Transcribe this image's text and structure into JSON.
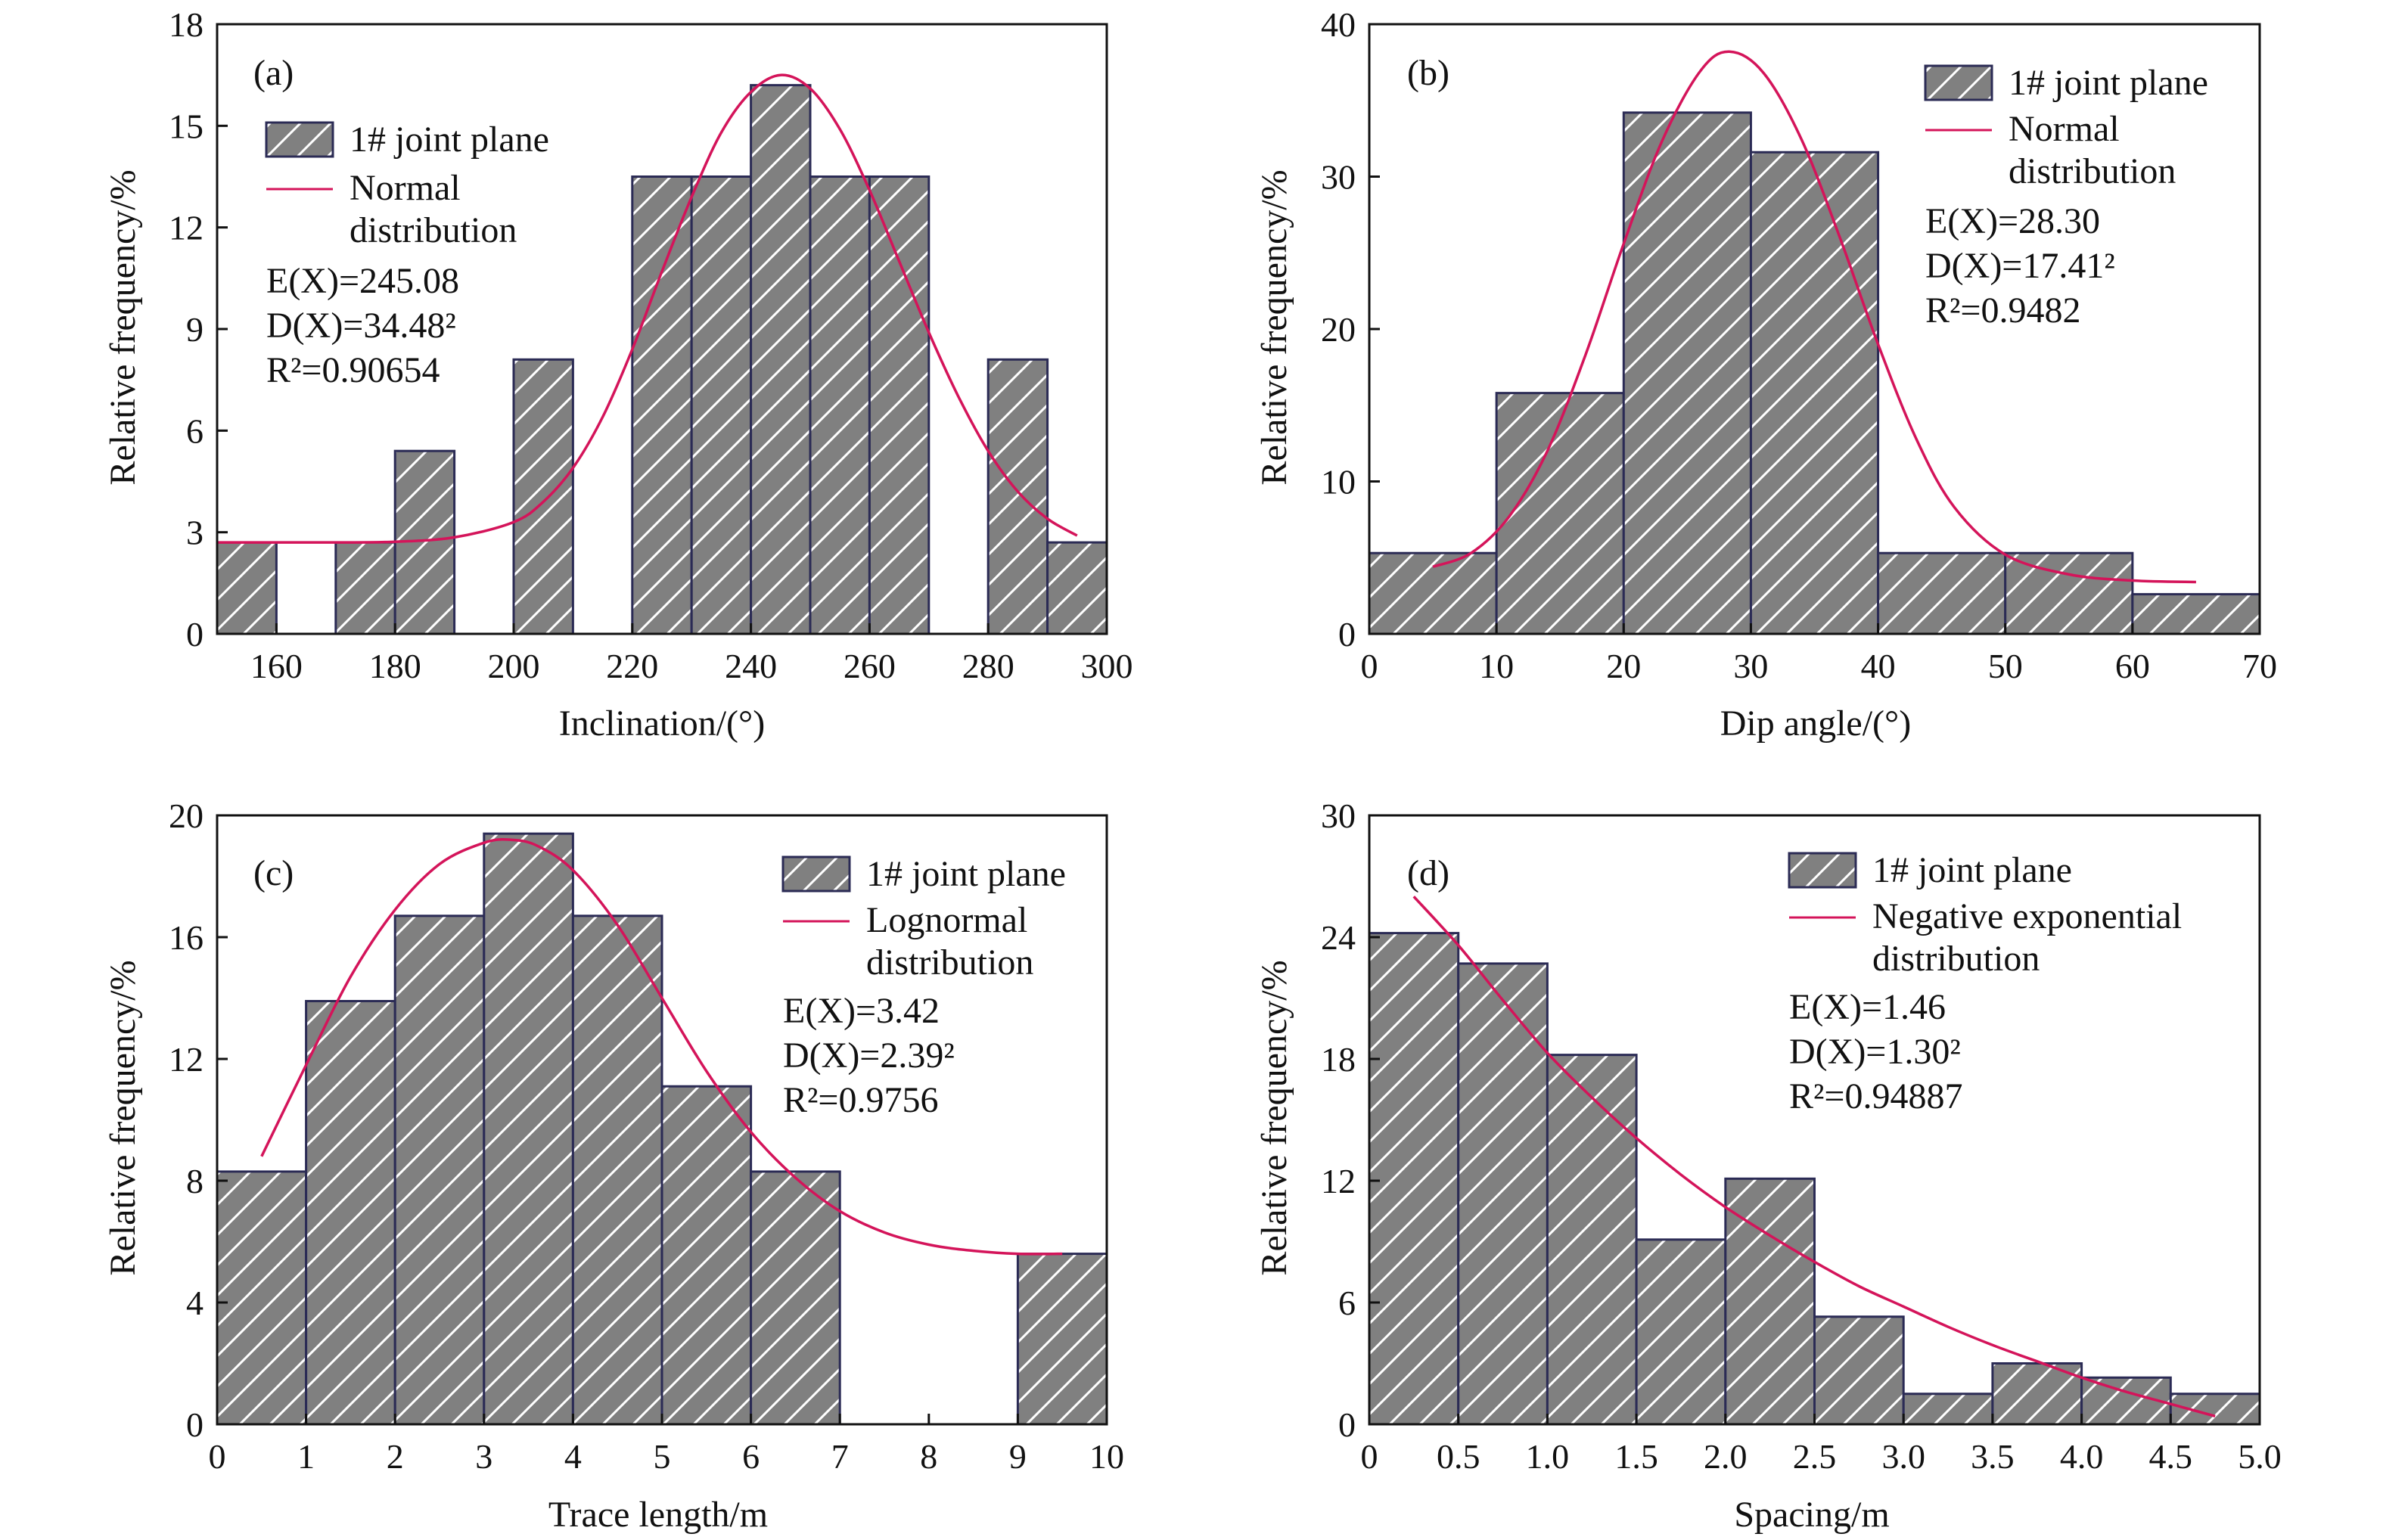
{
  "style": {
    "bar_fill": "#808080",
    "bar_stroke": "#2b2b55",
    "hatch_stroke": "#ffffff",
    "curve_color": "#d4145a",
    "axis_color": "#111111"
  },
  "chart_data": [
    {
      "type": "bar",
      "panel": "(a)",
      "xlabel": "Inclination/(°)",
      "ylabel": "Relative frequency/%",
      "xlim": [
        150,
        300
      ],
      "ylim": [
        0,
        18
      ],
      "xticks": [
        160,
        180,
        200,
        220,
        240,
        260,
        280,
        300
      ],
      "xtick_labels": [
        "160",
        "180",
        "200",
        "220",
        "240",
        "260",
        "280",
        "300"
      ],
      "yticks": [
        0,
        3,
        6,
        9,
        12,
        15,
        18
      ],
      "ytick_labels": [
        "0",
        "3",
        "6",
        "9",
        "12",
        "15",
        "18"
      ],
      "bins": [
        {
          "x0": 150,
          "x1": 160,
          "value": 2.7
        },
        {
          "x0": 170,
          "x1": 180,
          "value": 2.7
        },
        {
          "x0": 180,
          "x1": 190,
          "value": 5.4
        },
        {
          "x0": 200,
          "x1": 210,
          "value": 8.1
        },
        {
          "x0": 220,
          "x1": 230,
          "value": 13.5
        },
        {
          "x0": 230,
          "x1": 240,
          "value": 13.5
        },
        {
          "x0": 240,
          "x1": 250,
          "value": 16.2
        },
        {
          "x0": 250,
          "x1": 260,
          "value": 13.5
        },
        {
          "x0": 260,
          "x1": 270,
          "value": 13.5
        },
        {
          "x0": 280,
          "x1": 290,
          "value": 8.1
        },
        {
          "x0": 290,
          "x1": 300,
          "value": 2.7
        }
      ],
      "fit_curve": {
        "x": [
          150,
          160,
          170,
          180,
          190,
          200,
          205,
          210,
          215,
          220,
          225,
          230,
          235,
          240,
          245,
          250,
          255,
          260,
          265,
          270,
          275,
          280,
          285,
          290,
          295
        ],
        "y": [
          2.7,
          2.7,
          2.7,
          2.72,
          2.85,
          3.3,
          3.9,
          4.9,
          6.4,
          8.4,
          10.7,
          12.9,
          14.8,
          16.0,
          16.5,
          16.1,
          14.9,
          13.1,
          11.0,
          8.9,
          7.0,
          5.4,
          4.2,
          3.4,
          2.9
        ]
      },
      "legend": {
        "bar_label": "1# joint plane",
        "curve_label_lines": [
          "Normal",
          "distribution"
        ],
        "position": "top-left"
      },
      "stats": {
        "ex": "E(X)=245.08",
        "dx": "D(X)=34.48²",
        "r2": "R²=0.90654"
      }
    },
    {
      "type": "bar",
      "panel": "(b)",
      "xlabel": "Dip angle/(°)",
      "ylabel": "Relative frequency/%",
      "xlim": [
        0,
        70
      ],
      "ylim": [
        0,
        40
      ],
      "xticks": [
        0,
        10,
        20,
        30,
        40,
        50,
        60,
        70
      ],
      "xtick_labels": [
        "0",
        "10",
        "20",
        "30",
        "40",
        "50",
        "60",
        "70"
      ],
      "yticks": [
        0,
        10,
        20,
        30,
        40
      ],
      "ytick_labels": [
        "0",
        "10",
        "20",
        "30",
        "40"
      ],
      "bins": [
        {
          "x0": 0,
          "x1": 10,
          "value": 5.3
        },
        {
          "x0": 10,
          "x1": 20,
          "value": 15.8
        },
        {
          "x0": 20,
          "x1": 30,
          "value": 34.2
        },
        {
          "x0": 30,
          "x1": 40,
          "value": 31.6
        },
        {
          "x0": 40,
          "x1": 50,
          "value": 5.3
        },
        {
          "x0": 50,
          "x1": 60,
          "value": 5.3
        },
        {
          "x0": 60,
          "x1": 70,
          "value": 2.6
        }
      ],
      "fit_curve": {
        "x": [
          5,
          8,
          11,
          14,
          17,
          20,
          23,
          26,
          28.3,
          31,
          34,
          37,
          40,
          43,
          46,
          50,
          55,
          60,
          65
        ],
        "y": [
          4.4,
          5.3,
          7.7,
          12.0,
          18.3,
          25.6,
          32.3,
          36.9,
          38.2,
          36.8,
          32.4,
          26.0,
          19.0,
          12.8,
          8.3,
          5.2,
          3.9,
          3.5,
          3.4
        ]
      },
      "legend": {
        "bar_label": "1# joint plane",
        "curve_label_lines": [
          "Normal",
          "distribution"
        ],
        "position": "top-right"
      },
      "stats": {
        "ex": "E(X)=28.30",
        "dx": "D(X)=17.41²",
        "r2": "R²=0.9482"
      }
    },
    {
      "type": "bar",
      "panel": "(c)",
      "xlabel": "Trace length/m",
      "ylabel": "Relative frequency/%",
      "xlim": [
        0,
        10
      ],
      "ylim": [
        0,
        20
      ],
      "xticks": [
        0,
        1,
        2,
        3,
        4,
        5,
        6,
        7,
        8,
        9,
        10
      ],
      "xtick_labels": [
        "0",
        "1",
        "2",
        "3",
        "4",
        "5",
        "6",
        "7",
        "8",
        "9",
        "10"
      ],
      "yticks": [
        0,
        4,
        8,
        12,
        16,
        20
      ],
      "ytick_labels": [
        "0",
        "4",
        "8",
        "12",
        "16",
        "20"
      ],
      "bins": [
        {
          "x0": 0,
          "x1": 1,
          "value": 8.3
        },
        {
          "x0": 1,
          "x1": 2,
          "value": 13.9
        },
        {
          "x0": 2,
          "x1": 3,
          "value": 16.7
        },
        {
          "x0": 3,
          "x1": 4,
          "value": 19.4
        },
        {
          "x0": 4,
          "x1": 5,
          "value": 16.7
        },
        {
          "x0": 5,
          "x1": 6,
          "value": 11.1
        },
        {
          "x0": 6,
          "x1": 7,
          "value": 8.3
        },
        {
          "x0": 9,
          "x1": 10,
          "value": 5.6
        }
      ],
      "fit_curve": {
        "x": [
          0.5,
          1.0,
          1.5,
          2.0,
          2.5,
          3.0,
          3.3,
          3.6,
          4.0,
          4.5,
          5.0,
          5.5,
          6.0,
          6.5,
          7.0,
          7.5,
          8.0,
          8.5,
          9.0,
          9.5
        ],
        "y": [
          8.8,
          11.8,
          14.7,
          16.9,
          18.4,
          19.1,
          19.2,
          19.0,
          18.2,
          16.4,
          14.0,
          11.6,
          9.6,
          8.1,
          7.0,
          6.3,
          5.9,
          5.7,
          5.6,
          5.6
        ]
      },
      "legend": {
        "bar_label": "1# joint plane",
        "curve_label_lines": [
          "Lognormal",
          "distribution"
        ],
        "position": "top-right"
      },
      "stats": {
        "ex": "E(X)=3.42",
        "dx": "D(X)=2.39²",
        "r2": "R²=0.9756"
      }
    },
    {
      "type": "bar",
      "panel": "(d)",
      "xlabel": "Spacing/m",
      "ylabel": "Relative frequency/%",
      "xlim": [
        0,
        5
      ],
      "ylim": [
        0,
        30
      ],
      "xticks": [
        0,
        0.5,
        1.0,
        1.5,
        2.0,
        2.5,
        3.0,
        3.5,
        4.0,
        4.5,
        5.0
      ],
      "xtick_labels": [
        "0",
        "0.5",
        "1.0",
        "1.5",
        "2.0",
        "2.5",
        "3.0",
        "3.5",
        "4.0",
        "4.5",
        "5.0"
      ],
      "yticks": [
        0,
        6,
        12,
        18,
        24,
        30
      ],
      "ytick_labels": [
        "0",
        "6",
        "12",
        "18",
        "24",
        "30"
      ],
      "bins": [
        {
          "x0": 0,
          "x1": 0.5,
          "value": 24.2
        },
        {
          "x0": 0.5,
          "x1": 1.0,
          "value": 22.7
        },
        {
          "x0": 1.0,
          "x1": 1.5,
          "value": 18.2
        },
        {
          "x0": 1.5,
          "x1": 2.0,
          "value": 9.1
        },
        {
          "x0": 2.0,
          "x1": 2.5,
          "value": 12.1
        },
        {
          "x0": 2.5,
          "x1": 3.0,
          "value": 5.3
        },
        {
          "x0": 3.0,
          "x1": 3.5,
          "value": 1.5
        },
        {
          "x0": 3.5,
          "x1": 4.0,
          "value": 3.0
        },
        {
          "x0": 4.0,
          "x1": 4.5,
          "value": 2.3
        },
        {
          "x0": 4.5,
          "x1": 5.0,
          "value": 1.5
        }
      ],
      "fit_curve": {
        "x": [
          0.25,
          0.5,
          0.75,
          1.0,
          1.25,
          1.5,
          1.75,
          2.0,
          2.25,
          2.5,
          2.75,
          3.0,
          3.25,
          3.5,
          3.75,
          4.0,
          4.25,
          4.5,
          4.75
        ],
        "y": [
          26.0,
          23.6,
          20.9,
          18.3,
          16.1,
          14.1,
          12.3,
          10.7,
          9.3,
          8.0,
          6.8,
          5.8,
          4.8,
          3.9,
          3.1,
          2.3,
          1.6,
          1.0,
          0.4
        ]
      },
      "legend": {
        "bar_label": "1# joint plane",
        "curve_label_lines": [
          "Negative exponential",
          "distribution"
        ],
        "position": "top-right"
      },
      "stats": {
        "ex": "E(X)=1.46",
        "dx": "D(X)=1.30²",
        "r2": "R²=0.94887"
      }
    }
  ]
}
